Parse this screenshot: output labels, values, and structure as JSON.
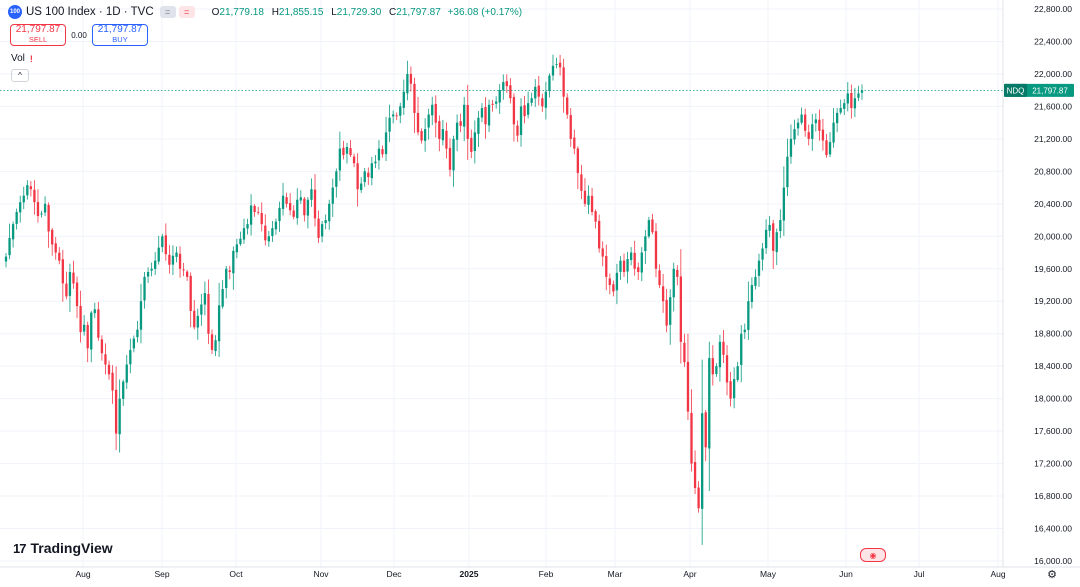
{
  "header": {
    "badge": "100",
    "title": "US 100 Index · 1D · TVC",
    "ohlc": {
      "o_label": "O",
      "o": "21,779.18",
      "h_label": "H",
      "h": "21,855.15",
      "l_label": "L",
      "l": "21,729.30",
      "c_label": "C",
      "c": "21,797.87",
      "change": "+36.08 (+0.17%)"
    }
  },
  "trade": {
    "sell_price": "21,797.87",
    "sell_label": "SELL",
    "spread": "0.00",
    "buy_price": "21,797.87",
    "buy_label": "BUY"
  },
  "indicator": {
    "label": "Vol",
    "warning": "!"
  },
  "collapse_symbol": "^",
  "brand": {
    "logo_text": "17",
    "name": "TradingView"
  },
  "price_tag": {
    "symbol": "NDQ",
    "value": "21,797.87"
  },
  "colors": {
    "up": "#089981",
    "down": "#f23645",
    "accent": "#2962ff"
  },
  "icons": {
    "settings": "gear-icon",
    "events": "flag-icon"
  },
  "chart_data": {
    "type": "candlestick",
    "symbol": "US 100 Index",
    "timeframe": "1D",
    "y_ticks": [
      16000,
      16400,
      16800,
      17200,
      17600,
      18000,
      18400,
      18800,
      19200,
      19600,
      20000,
      20400,
      20800,
      21200,
      21600,
      22000,
      22400,
      22800
    ],
    "y_tick_labels": [
      "16,000.00",
      "16,400.00",
      "16,800.00",
      "17,200.00",
      "17,600.00",
      "18,000.00",
      "18,400.00",
      "18,800.00",
      "19,200.00",
      "19,600.00",
      "20,000.00",
      "20,400.00",
      "20,800.00",
      "21,200.00",
      "21,600.00",
      "22,000.00",
      "22,400.00",
      "22,800.00"
    ],
    "ylim": [
      16000,
      22800
    ],
    "x_labels": [
      "Aug",
      "Sep",
      "Oct",
      "Nov",
      "Dec",
      "2025",
      "Feb",
      "Mar",
      "Apr",
      "May",
      "Jun",
      "Jul",
      "Aug"
    ],
    "last_price": 21797.87,
    "closes": [
      19750,
      19980,
      20150,
      20300,
      20420,
      20500,
      20630,
      20580,
      20420,
      20250,
      20280,
      20400,
      20060,
      19900,
      19800,
      19700,
      19420,
      19260,
      19560,
      19420,
      19140,
      18820,
      18910,
      18620,
      19060,
      19100,
      18750,
      18560,
      18420,
      18300,
      18100,
      17570,
      18000,
      18210,
      18420,
      18600,
      18740,
      18850,
      19200,
      19500,
      19560,
      19600,
      19700,
      19860,
      20000,
      19780,
      19650,
      19760,
      19800,
      19600,
      19580,
      19500,
      19080,
      18880,
      19020,
      19160,
      19300,
      18800,
      18600,
      18720,
      19150,
      19350,
      19600,
      19560,
      19820,
      19900,
      19970,
      20100,
      20150,
      20380,
      20300,
      20300,
      20150,
      19950,
      20000,
      20100,
      20180,
      20350,
      20500,
      20400,
      20320,
      20240,
      20450,
      20480,
      20260,
      20450,
      20580,
      20220,
      19980,
      20150,
      20200,
      20400,
      20600,
      20800,
      21080,
      21000,
      21100,
      21000,
      20900,
      20580,
      20650,
      20800,
      20730,
      20900,
      20920,
      21080,
      21010,
      21280,
      21460,
      21500,
      21480,
      21600,
      21780,
      22000,
      21880,
      21520,
      21280,
      21180,
      21320,
      21500,
      21620,
      21400,
      21200,
      21320,
      21080,
      20820,
      21200,
      21400,
      21360,
      21620,
      21200,
      21040,
      21280,
      21460,
      21580,
      21380,
      21620,
      21620,
      21660,
      21800,
      21900,
      21850,
      21700,
      21380,
      21240,
      21600,
      21480,
      21640,
      21700,
      21840,
      21720,
      21600,
      21780,
      21980,
      22100,
      22120,
      22080,
      21720,
      21500,
      21200,
      21080,
      20780,
      20560,
      20400,
      20500,
      20300,
      20180,
      19850,
      19750,
      19500,
      19400,
      19320,
      19550,
      19700,
      19560,
      19720,
      19800,
      19600,
      19560,
      19800,
      20000,
      20200,
      20050,
      19600,
      19400,
      19200,
      18900,
      19250,
      19600,
      19500,
      18700,
      18450,
      17840,
      17200,
      16900,
      16650,
      17820,
      17400,
      18500,
      18300,
      18400,
      18700,
      18540,
      18200,
      18000,
      18240,
      18400,
      18800,
      18850,
      19200,
      19400,
      19500,
      19700,
      19850,
      20080,
      20140,
      19820,
      20050,
      20200,
      20600,
      20980,
      21200,
      21320,
      21400,
      21500,
      21300,
      21200,
      21380,
      21440,
      21300,
      21180,
      21000,
      21160,
      21400,
      21520,
      21580,
      21640,
      21760,
      21580,
      21700,
      21760,
      21797.87
    ]
  }
}
